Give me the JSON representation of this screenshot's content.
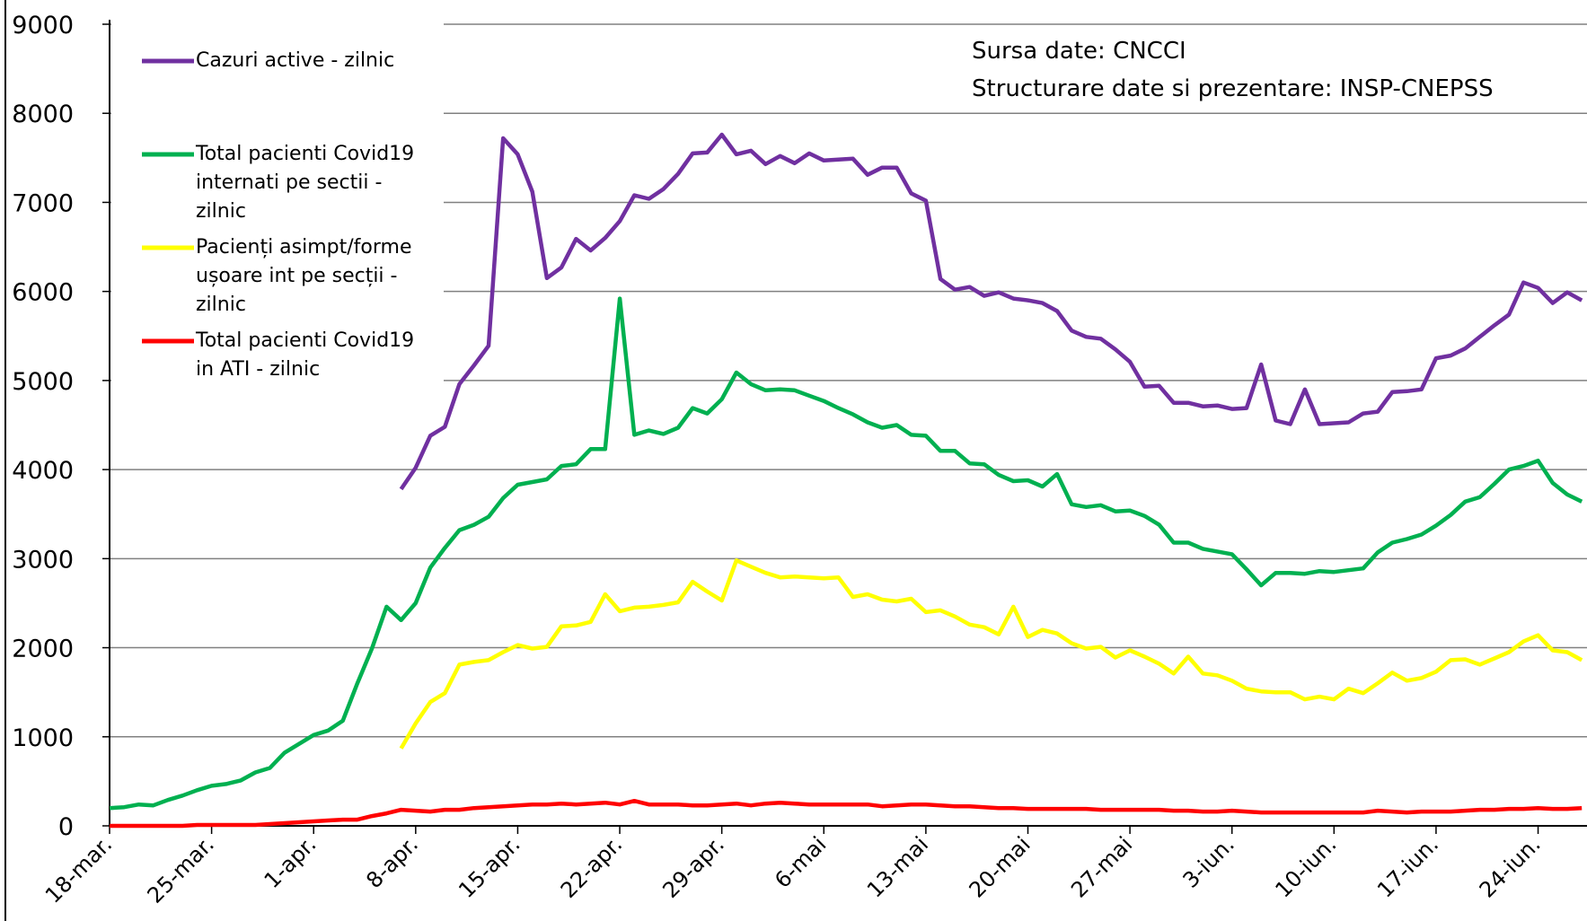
{
  "chart_data": {
    "type": "line",
    "categories": [
      "18-mar.",
      null,
      null,
      null,
      null,
      null,
      null,
      "25-mar.",
      null,
      null,
      null,
      null,
      null,
      null,
      "1-apr.",
      null,
      null,
      null,
      null,
      null,
      null,
      "8-apr.",
      null,
      null,
      null,
      null,
      null,
      null,
      "15-apr.",
      null,
      null,
      null,
      null,
      null,
      null,
      "22-apr.",
      null,
      null,
      null,
      null,
      null,
      null,
      "29-apr.",
      null,
      null,
      null,
      null,
      null,
      null,
      "6-mai",
      null,
      null,
      null,
      null,
      null,
      null,
      "13-mai",
      null,
      null,
      null,
      null,
      null,
      null,
      "20-mai",
      null,
      null,
      null,
      null,
      null,
      null,
      "27-mai",
      null,
      null,
      null,
      null,
      null,
      null,
      "3-iun.",
      null,
      null,
      null,
      null,
      null,
      null,
      "10-iun.",
      null,
      null,
      null,
      null,
      null,
      null,
      "17-iun.",
      null,
      null,
      null,
      null,
      null,
      null,
      "24-iun.",
      null,
      null,
      null
    ],
    "series": [
      {
        "name": "Cazuri active - zilnic",
        "color": "#7030a0",
        "values": [
          null,
          null,
          null,
          null,
          null,
          null,
          null,
          null,
          null,
          null,
          null,
          null,
          null,
          null,
          null,
          null,
          null,
          null,
          null,
          null,
          3780,
          4020,
          4380,
          4480,
          4960,
          5170,
          5390,
          7720,
          7540,
          7120,
          6150,
          6270,
          6590,
          6460,
          6600,
          6790,
          7080,
          7040,
          7150,
          7320,
          7550,
          7560,
          7760,
          7540,
          7580,
          7430,
          7520,
          7440,
          7550,
          7470,
          7480,
          7490,
          7310,
          7390,
          7390,
          7100,
          7020,
          6140,
          6020,
          6050,
          5950,
          5990,
          5920,
          5900,
          5870,
          5780,
          5560,
          5490,
          5470,
          5350,
          5210,
          4930,
          4940,
          4750,
          4750,
          4710,
          4720,
          4680,
          4690,
          5180,
          4550,
          4510,
          4900,
          4510,
          4520,
          4530,
          4630,
          4650,
          4870,
          4880,
          4900,
          5250,
          5280,
          5360,
          5490,
          5620,
          5740,
          6100,
          6040,
          5870,
          5990,
          5900
        ]
      },
      {
        "name": "Total pacienti Covid19 internati pe sectii - zilnic",
        "color": "#00b050",
        "values": [
          200,
          210,
          240,
          230,
          290,
          340,
          400,
          450,
          470,
          510,
          600,
          650,
          820,
          920,
          1020,
          1070,
          1180,
          1600,
          1990,
          2460,
          2310,
          2500,
          2900,
          3120,
          3320,
          3380,
          3470,
          3680,
          3830,
          3860,
          3890,
          4040,
          4060,
          4230,
          4230,
          5920,
          4390,
          4440,
          4400,
          4470,
          4690,
          4630,
          4790,
          5090,
          4960,
          4890,
          4900,
          4890,
          4830,
          4770,
          4690,
          4620,
          4530,
          4470,
          4500,
          4390,
          4380,
          4210,
          4210,
          4070,
          4060,
          3940,
          3870,
          3880,
          3810,
          3950,
          3610,
          3580,
          3600,
          3530,
          3540,
          3480,
          3380,
          3180,
          3180,
          3110,
          3080,
          3050,
          2880,
          2700,
          2840,
          2840,
          2830,
          2860,
          2850,
          2870,
          2890,
          3070,
          3180,
          3220,
          3270,
          3370,
          3490,
          3640,
          3690,
          3840,
          4000,
          4040,
          4100,
          3850,
          3720,
          3640
        ]
      },
      {
        "name": "Pacienți asimpt/forme ușoare int pe secții - zilnic",
        "color": "#ffff00",
        "values": [
          null,
          null,
          null,
          null,
          null,
          null,
          null,
          null,
          null,
          null,
          null,
          null,
          null,
          null,
          null,
          null,
          null,
          null,
          null,
          null,
          870,
          1150,
          1390,
          1490,
          1810,
          1840,
          1860,
          1950,
          2030,
          1990,
          2010,
          2240,
          2250,
          2290,
          2600,
          2410,
          2450,
          2460,
          2480,
          2510,
          2740,
          2630,
          2530,
          2980,
          2910,
          2840,
          2790,
          2800,
          2790,
          2780,
          2790,
          2570,
          2600,
          2540,
          2520,
          2550,
          2400,
          2420,
          2350,
          2260,
          2230,
          2150,
          2460,
          2120,
          2200,
          2160,
          2050,
          1990,
          2010,
          1890,
          1970,
          1900,
          1820,
          1710,
          1900,
          1710,
          1690,
          1630,
          1540,
          1510,
          1500,
          1500,
          1420,
          1450,
          1420,
          1540,
          1490,
          1600,
          1720,
          1630,
          1660,
          1730,
          1860,
          1870,
          1810,
          1880,
          1950,
          2070,
          2140,
          1970,
          1950,
          1860
        ]
      },
      {
        "name": "Total pacienti Covid19 in ATI - zilnic",
        "color": "#ff0000",
        "values": [
          0,
          0,
          0,
          0,
          0,
          0,
          10,
          10,
          10,
          10,
          10,
          20,
          30,
          40,
          50,
          60,
          70,
          70,
          110,
          140,
          180,
          170,
          160,
          180,
          180,
          200,
          210,
          220,
          230,
          240,
          240,
          250,
          240,
          250,
          260,
          240,
          280,
          240,
          240,
          240,
          230,
          230,
          240,
          250,
          230,
          250,
          260,
          250,
          240,
          240,
          240,
          240,
          240,
          220,
          230,
          240,
          240,
          230,
          220,
          220,
          210,
          200,
          200,
          190,
          190,
          190,
          190,
          190,
          180,
          180,
          180,
          180,
          180,
          170,
          170,
          160,
          160,
          170,
          160,
          150,
          150,
          150,
          150,
          150,
          150,
          150,
          150,
          170,
          160,
          150,
          160,
          160,
          160,
          170,
          180,
          180,
          190,
          190,
          200,
          190,
          190,
          200
        ]
      }
    ],
    "ylim": [
      0,
      9000
    ],
    "yticks": [
      0,
      1000,
      2000,
      3000,
      4000,
      5000,
      6000,
      7000,
      8000,
      9000
    ],
    "grid": true,
    "legend": "upper left",
    "annotations": [
      "Sursa date: CNCCI",
      "Structurare date si prezentare: INSP-CNEPSS"
    ]
  }
}
